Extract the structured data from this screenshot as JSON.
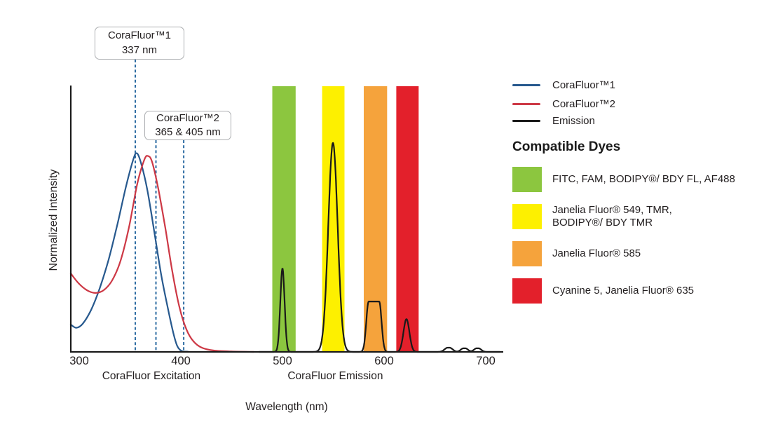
{
  "chart_data": {
    "type": "line",
    "title": "",
    "x_axis": {
      "title": "Wavelength (nm)",
      "ticks": [
        300,
        400,
        500,
        600,
        700
      ],
      "range_nm": [
        292,
        717
      ],
      "region_labels": [
        {
          "key": "excitation",
          "text": "CoraFluor Excitation",
          "center_nm": 371
        },
        {
          "key": "emission",
          "text": "CoraFluor Emission",
          "center_nm": 552
        }
      ]
    },
    "y_axis": {
      "title": "Normalized Intensity",
      "range": [
        0,
        1.35
      ],
      "ticks_shown": false
    },
    "series": [
      {
        "key": "corafluor1",
        "name": "CoraFluor™1",
        "color": "#27598E",
        "role": "excitation",
        "points_nm_intensity": [
          [
            291.7,
            0.137
          ],
          [
            297.2,
            0.121
          ],
          [
            303.4,
            0.141
          ],
          [
            311.7,
            0.211
          ],
          [
            320,
            0.317
          ],
          [
            329,
            0.465
          ],
          [
            337.9,
            0.648
          ],
          [
            346.2,
            0.834
          ],
          [
            353.1,
            0.965
          ],
          [
            356.6,
            0.998
          ],
          [
            360.7,
            0.951
          ],
          [
            366.9,
            0.817
          ],
          [
            373.8,
            0.606
          ],
          [
            380.7,
            0.387
          ],
          [
            387.6,
            0.211
          ],
          [
            393.1,
            0.085
          ],
          [
            396.6,
            0.028
          ],
          [
            400.7,
            0.005
          ],
          [
            406.9,
            0.001
          ]
        ]
      },
      {
        "key": "corafluor2",
        "name": "CoraFluor™2",
        "color": "#CD3845",
        "role": "excitation",
        "points_nm_intensity": [
          [
            291.7,
            0.394
          ],
          [
            299.3,
            0.345
          ],
          [
            307.6,
            0.31
          ],
          [
            315.9,
            0.296
          ],
          [
            324.1,
            0.31
          ],
          [
            332.4,
            0.359
          ],
          [
            340.7,
            0.458
          ],
          [
            349,
            0.627
          ],
          [
            357.2,
            0.845
          ],
          [
            364.1,
            0.965
          ],
          [
            367.6,
            0.984
          ],
          [
            371.7,
            0.954
          ],
          [
            377.9,
            0.817
          ],
          [
            384.8,
            0.62
          ],
          [
            391.7,
            0.401
          ],
          [
            398.6,
            0.225
          ],
          [
            405.5,
            0.113
          ],
          [
            412.4,
            0.053
          ],
          [
            420.7,
            0.021
          ],
          [
            432.4,
            0.007
          ],
          [
            449.7,
            0.002
          ],
          [
            471.7,
            0.0
          ]
        ]
      },
      {
        "key": "emission",
        "name": "Emission",
        "color": "#1A1A1A",
        "role": "emission",
        "peaks": [
          {
            "center_nm": 500,
            "height": 0.42,
            "sigma_nm": 2.1,
            "flat_nm": 0
          },
          {
            "center_nm": 549.7,
            "height": 1.05,
            "sigma_nm": 4.6,
            "flat_nm": 0
          },
          {
            "center_nm": 590,
            "height": 0.253,
            "sigma_nm": 2.3,
            "flat_nm": 10.4
          },
          {
            "center_nm": 622,
            "height": 0.165,
            "sigma_nm": 2.9,
            "flat_nm": 0
          },
          {
            "center_nm": 663.5,
            "height": 0.021,
            "sigma_nm": 3.0,
            "flat_nm": 2
          },
          {
            "center_nm": 679,
            "height": 0.018,
            "sigma_nm": 2.6,
            "flat_nm": 2
          },
          {
            "center_nm": 692,
            "height": 0.018,
            "sigma_nm": 2.6,
            "flat_nm": 2
          }
        ]
      }
    ],
    "filter_bands": [
      {
        "key": "green",
        "color": "#8CC63F",
        "nm_start": 490,
        "nm_end": 513,
        "dye_lines": [
          "FITC, FAM, BODIPY®/ BDY FL, AF488"
        ]
      },
      {
        "key": "yellow",
        "color": "#FDF000",
        "nm_start": 539,
        "nm_end": 561,
        "dye_lines": [
          "Janelia Fluor® 549, TMR,",
          "BODIPY®/ BDY TMR"
        ]
      },
      {
        "key": "orange",
        "color": "#F5A33C",
        "nm_start": 580,
        "nm_end": 603,
        "dye_lines": [
          "Janelia Fluor® 585"
        ]
      },
      {
        "key": "red",
        "color": "#E3202B",
        "nm_start": 612,
        "nm_end": 634,
        "dye_lines": [
          "Cyanine 5, Janelia Fluor® 635"
        ]
      }
    ],
    "annotations": [
      {
        "label": "CoraFluor™1",
        "value": "337 nm",
        "lines_nm": [
          355.2
        ]
      },
      {
        "label": "CoraFluor™2",
        "value": "365 & 405 nm",
        "lines_nm": [
          375.5,
          402.8
        ]
      }
    ],
    "annotation_line_color": "#2F6DA3",
    "legend_heading": "Compatible Dyes"
  }
}
